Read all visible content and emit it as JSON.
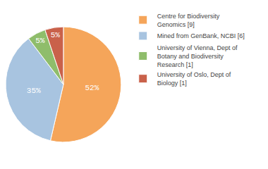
{
  "chart_data": {
    "type": "pie",
    "categories": [
      "Centre for Biodiversity\nGenomics [9]",
      "Mined from GenBank, NCBI [6]",
      "University of Vienna, Dept of\nBotany and Biodiversity\nResearch [1]",
      "University of Oslo, Dept of\nBiology [1]"
    ],
    "values": [
      52,
      35,
      5,
      5
    ],
    "value_labels": [
      "52%",
      "35%",
      "5%",
      "5%"
    ],
    "colors": [
      "#F5A55A",
      "#A8C4E0",
      "#8FBD6B",
      "#C9614A"
    ],
    "data_labels": true,
    "legend": "upper right"
  }
}
